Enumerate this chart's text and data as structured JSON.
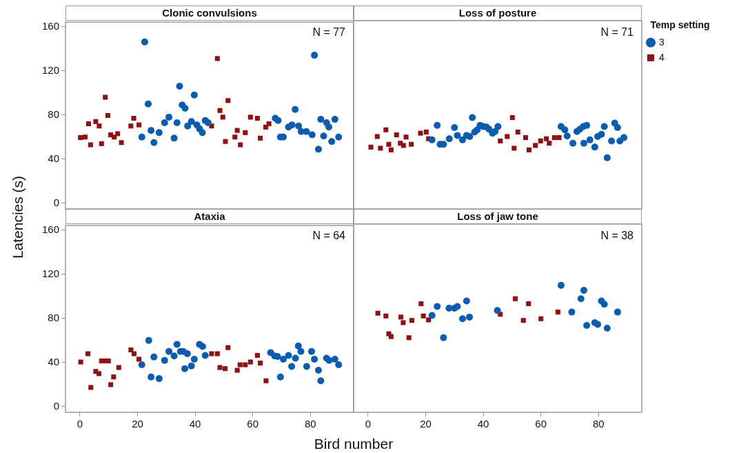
{
  "chart_data": [
    {
      "type": "scatter",
      "title": "Clonic convulsions",
      "ylabel": "Latencies (s)",
      "annotations": [
        "N = 77"
      ],
      "xlim": [
        -5,
        95
      ],
      "ylim": [
        -5,
        164
      ],
      "xticks": [
        0,
        20,
        40,
        60,
        80
      ],
      "yticks": [
        0,
        40,
        80,
        120,
        160
      ],
      "tick_labels": "y",
      "grid": false,
      "series": [
        {
          "color": "#0a5cb0",
          "marker": "circle",
          "x": [
            21.5,
            22.5,
            23.7,
            24.7,
            25.7,
            27.5,
            29.4,
            30.9,
            32.7,
            33.7,
            34.6,
            35.5,
            36.5,
            37.4,
            38.7,
            39.7,
            40.6,
            41.5,
            42.5,
            43.5,
            44.5,
            67.8,
            68.8,
            69.6,
            70.6,
            72.4,
            73.6,
            74.7,
            75.9,
            76.8,
            78.6,
            79.6,
            80.6,
            81.4,
            82.8,
            83.6,
            84.6,
            85.6,
            86.4,
            87.4,
            88.5,
            89.8
          ],
          "values": [
            60,
            146,
            90,
            66,
            55,
            64,
            73,
            78,
            59,
            73,
            106,
            89,
            86,
            70,
            74,
            98,
            71,
            67.5,
            64,
            75,
            73,
            77,
            75,
            60,
            60,
            69,
            71,
            85,
            70,
            65,
            65,
            null,
            62,
            134,
            49,
            76,
            61,
            73,
            69,
            56,
            76,
            60
          ]
        },
        {
          "color": "#8e1214",
          "marker": "square",
          "x": [
            0.2,
            1.8,
            3.7,
            3.0,
            5.5,
            6.7,
            7.5,
            8.8,
            9.7,
            10.7,
            11.9,
            13.1,
            14.4,
            17.7,
            18.7,
            20.5,
            45.7,
            47.7,
            48.6,
            49.6,
            50.5,
            51.4,
            53.8,
            54.6,
            55.7,
            57.4,
            59.2,
            61.6,
            62.6,
            64.5,
            65.6
          ],
          "values": [
            59.5,
            60,
            53,
            72,
            74,
            70,
            54,
            96,
            79.5,
            62,
            60,
            63,
            55,
            70,
            77,
            71,
            70,
            131,
            84,
            78,
            56,
            93,
            60,
            66,
            53,
            64,
            78,
            77,
            59,
            69,
            72
          ]
        }
      ]
    },
    {
      "type": "scatter",
      "title": "Loss of posture",
      "annotations": [
        "N = 71"
      ],
      "legend": "top right",
      "legend_title": "Temp setting",
      "xlim": [
        -5,
        95
      ],
      "ylim": [
        -5,
        164
      ],
      "xticks": [
        0,
        20,
        40,
        60,
        80
      ],
      "yticks": [
        0,
        40,
        80,
        120,
        160
      ],
      "tick_labels": false,
      "grid": false,
      "series": [
        {
          "name": "3",
          "color": "#0a5cb0",
          "marker": "circle",
          "x": [
            22.2,
            24.0,
            25.0,
            26.2,
            28.2,
            30.0,
            31.0,
            32.8,
            34.2,
            35.3,
            36.2,
            37.0,
            37.9,
            38.9,
            40.0,
            41.1,
            42.0,
            43.2,
            44.1,
            45.1,
            67.0,
            68.3,
            69.1,
            70.1,
            71.1,
            72.5,
            73.5,
            74.7,
            75.9,
            74.9,
            77.0,
            78.7,
            79.7,
            81.0,
            82.0,
            83.0,
            84.0,
            84.5,
            85.6,
            86.6,
            87.4,
            88.8
          ],
          "values": [
            57,
            70,
            53,
            53,
            58,
            68,
            61,
            57,
            61,
            60,
            77,
            64,
            66,
            70,
            69,
            68.5,
            66.5,
            63,
            64.5,
            69,
            69,
            66,
            60.5,
            null,
            54,
            64.5,
            66.5,
            69,
            70,
            54,
            57,
            50.5,
            60,
            62,
            69,
            41,
            null,
            56,
            72,
            68,
            56,
            59
          ]
        },
        {
          "name": "4",
          "color": "#8e1214",
          "marker": "square",
          "x": [
            1.0,
            3.2,
            4.3,
            6.2,
            7.2,
            8.0,
            9.9,
            11.2,
            12.3,
            13.2,
            15.0,
            18.2,
            20.2,
            21.0,
            45.9,
            48.3,
            50.1,
            50.7,
            52.0,
            54.7,
            55.9,
            58.1,
            59.9,
            61.9,
            62.9,
            64.7,
            66.3
          ],
          "values": [
            50.5,
            60,
            49.5,
            66,
            53,
            48,
            61.5,
            54,
            52,
            59.5,
            53,
            63,
            64,
            58,
            56,
            60,
            77,
            49.5,
            64,
            59,
            48,
            52,
            56,
            58,
            54,
            59,
            59
          ]
        }
      ]
    },
    {
      "type": "scatter",
      "title": "Ataxia",
      "xlabel": "Bird number",
      "annotations": [
        "N = 64"
      ],
      "xlim": [
        -5,
        95
      ],
      "ylim": [
        -5,
        164
      ],
      "xticks": [
        0,
        20,
        40,
        60,
        80
      ],
      "yticks": [
        0,
        40,
        80,
        120,
        160
      ],
      "grid": false,
      "series": [
        {
          "color": "#0a5cb0",
          "marker": "circle",
          "x": [
            21.5,
            23.9,
            24.7,
            25.7,
            27.5,
            29.4,
            30.9,
            32.7,
            33.7,
            34.9,
            35.9,
            37.3,
            36.4,
            38.7,
            39.7,
            41.5,
            42.6,
            43.5,
            66.2,
            67.6,
            68.6,
            69.6,
            70.6,
            72.4,
            73.5,
            74.8,
            75.8,
            76.7,
            78.7,
            80.4,
            81.4,
            82.8,
            83.6,
            85.6,
            86.5,
            88.5,
            89.8
          ],
          "values": [
            38,
            60,
            27,
            45,
            25.5,
            42,
            50,
            46,
            56.5,
            50,
            50,
            48,
            34.5,
            37,
            43,
            56.5,
            54.5,
            46.5,
            49,
            46,
            45.5,
            27,
            43,
            46.5,
            36.5,
            44,
            55,
            50,
            36.5,
            50,
            43,
            33,
            23.5,
            44,
            42,
            43,
            38
          ]
        },
        {
          "color": "#8e1214",
          "marker": "square",
          "x": [
            0.3,
            2.8,
            3.8,
            5.5,
            6.6,
            7.5,
            8.7,
            9.9,
            10.7,
            11.7,
            13.5,
            17.7,
            18.8,
            20.5,
            45.7,
            47.7,
            48.6,
            50.4,
            51.4,
            54.6,
            55.6,
            57.4,
            59.2,
            61.6,
            62.6,
            64.6
          ],
          "values": [
            40.5,
            48,
            17.5,
            32,
            30,
            41.5,
            41.5,
            41.5,
            20,
            27,
            35.5,
            51.5,
            48,
            43,
            48,
            48,
            35.5,
            34.5,
            53.5,
            33,
            38,
            38,
            40.5,
            46.5,
            39.5,
            23.5
          ]
        }
      ]
    },
    {
      "type": "scatter",
      "title": "Loss of jaw tone",
      "annotations": [
        "N = 38"
      ],
      "xlim": [
        -5,
        95
      ],
      "ylim": [
        -5,
        164
      ],
      "xticks": [
        0,
        20,
        40,
        60,
        80
      ],
      "yticks": [
        0,
        40,
        80,
        120,
        160
      ],
      "tick_labels": "x",
      "grid": false,
      "series": [
        {
          "color": "#0a5cb0",
          "marker": "circle",
          "x": [
            22.2,
            24.0,
            26.2,
            28.1,
            30.0,
            31.0,
            32.8,
            34.2,
            35.2,
            44.9,
            67.0,
            70.7,
            73.9,
            74.9,
            75.9,
            78.7,
            79.7,
            81.0,
            82.0,
            83.0,
            86.6
          ],
          "values": [
            82,
            90,
            62,
            88.5,
            88.5,
            90,
            79,
            95,
            80.5,
            86.5,
            109,
            85,
            97,
            104.5,
            73,
            75.5,
            74,
            95,
            92,
            70.5,
            85
          ]
        },
        {
          "color": "#8e1214",
          "marker": "square",
          "x": [
            3.4,
            6.2,
            7.2,
            8.0,
            11.4,
            12.2,
            14.2,
            15.2,
            18.4,
            19.2,
            21.0,
            45.9,
            51.1,
            53.9,
            55.7,
            60.0,
            65.9
          ],
          "values": [
            84,
            81.5,
            65.5,
            63,
            80.5,
            75.5,
            62,
            77.5,
            92.5,
            81.5,
            78,
            83,
            97,
            77.5,
            92.5,
            79,
            85
          ]
        }
      ]
    }
  ]
}
